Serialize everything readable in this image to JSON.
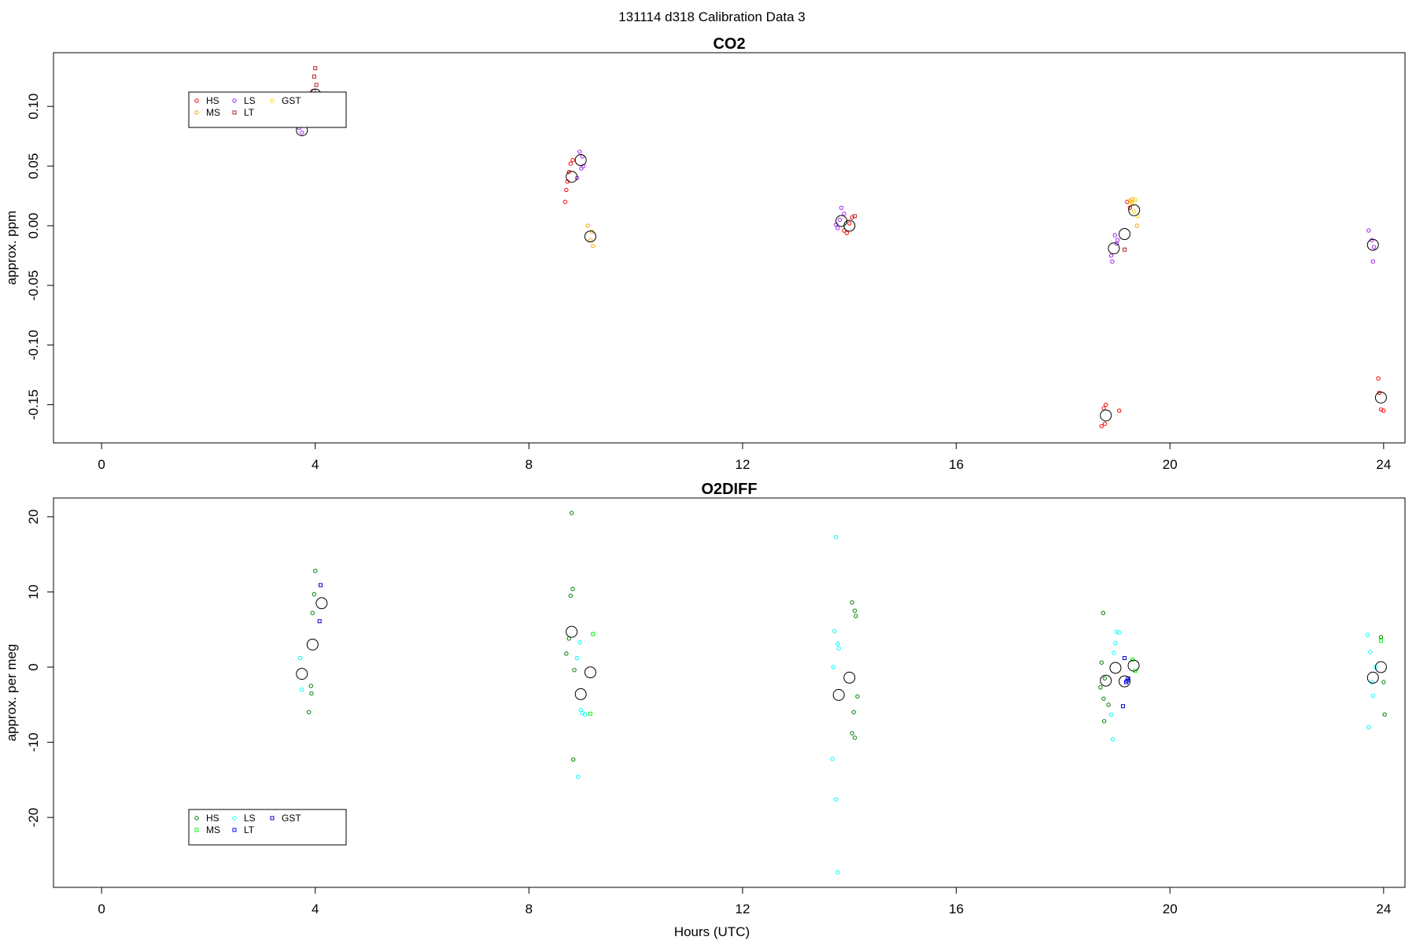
{
  "figure_title": "131114   d318   Calibration Data 3",
  "xlabel": "Hours (UTC)",
  "chart_data": [
    {
      "type": "scatter",
      "title": "CO2",
      "ylabel": "approx. ppm",
      "xlabel": "",
      "xlim": [
        -0.9,
        24.4
      ],
      "ylim": [
        -0.182,
        0.145
      ],
      "xticks": [
        "0",
        "4",
        "8",
        "12",
        "16",
        "20",
        "24"
      ],
      "xtick_values": [
        0,
        4,
        8,
        12,
        16,
        20,
        24
      ],
      "yticks": [
        "-0.15",
        "-0.10",
        "-0.05",
        "0.00",
        "0.05",
        "0.10"
      ],
      "ytick_values": [
        -0.15,
        -0.1,
        -0.05,
        0.0,
        0.05,
        0.1
      ],
      "legend": {
        "placement": "top-left",
        "items": [
          "HS",
          "LS",
          "GST",
          "MS",
          "LT"
        ]
      },
      "series": [
        {
          "name": "HS",
          "color": "#ff0000",
          "marker": "circle",
          "points": [
            [
              8.75,
              0.045
            ],
            [
              8.78,
              0.052
            ],
            [
              8.82,
              0.055
            ],
            [
              8.72,
              0.037
            ],
            [
              8.7,
              0.03
            ],
            [
              8.68,
              0.02
            ],
            [
              13.9,
              -0.004
            ],
            [
              14.05,
              0.007
            ],
            [
              13.95,
              -0.006
            ],
            [
              14.0,
              0.002
            ],
            [
              18.72,
              -0.168
            ],
            [
              18.8,
              -0.15
            ],
            [
              18.76,
              -0.153
            ],
            [
              18.78,
              -0.166
            ],
            [
              19.05,
              -0.155
            ],
            [
              23.9,
              -0.128
            ],
            [
              23.95,
              -0.154
            ],
            [
              23.92,
              -0.14
            ],
            [
              24.0,
              -0.155
            ],
            [
              19.2,
              0.02
            ],
            [
              19.25,
              0.015
            ]
          ]
        },
        {
          "name": "LS",
          "color": "#a020f0",
          "marker": "circle",
          "points": [
            [
              3.7,
              0.082
            ],
            [
              3.75,
              0.078
            ],
            [
              3.8,
              0.085
            ],
            [
              8.95,
              0.062
            ],
            [
              9.0,
              0.058
            ],
            [
              9.02,
              0.05
            ],
            [
              8.98,
              0.048
            ],
            [
              8.9,
              0.04
            ],
            [
              13.82,
              0.005
            ],
            [
              13.85,
              0.015
            ],
            [
              13.78,
              -0.002
            ],
            [
              13.9,
              0.01
            ],
            [
              13.75,
              0.001
            ],
            [
              18.92,
              -0.03
            ],
            [
              18.97,
              -0.008
            ],
            [
              19.0,
              -0.015
            ],
            [
              18.9,
              -0.025
            ],
            [
              19.02,
              -0.012
            ],
            [
              23.72,
              -0.004
            ],
            [
              23.78,
              -0.012
            ],
            [
              23.8,
              -0.03
            ],
            [
              23.82,
              -0.018
            ]
          ]
        },
        {
          "name": "GST",
          "color": "#ffd700",
          "marker": "circle",
          "points": [
            [
              19.35,
              0.022
            ],
            [
              19.3,
              0.018
            ],
            [
              19.4,
              0.008
            ],
            [
              19.33,
              0.012
            ],
            [
              19.28,
              0.02
            ]
          ]
        },
        {
          "name": "MS",
          "color": "#ffa500",
          "marker": "circle",
          "points": [
            [
              9.1,
              0.0
            ],
            [
              9.15,
              -0.012
            ],
            [
              9.2,
              -0.017
            ],
            [
              9.18,
              -0.005
            ],
            [
              19.38,
              0.0
            ],
            [
              19.3,
              0.022
            ],
            [
              19.25,
              0.021
            ]
          ]
        },
        {
          "name": "LT",
          "color": "#b22222",
          "marker": "square",
          "points": [
            [
              4.0,
              0.132
            ],
            [
              3.98,
              0.125
            ],
            [
              4.02,
              0.118
            ],
            [
              3.97,
              0.113
            ],
            [
              14.1,
              0.008
            ],
            [
              19.15,
              -0.02
            ]
          ]
        },
        {
          "name": "mean",
          "color": "#000000",
          "marker": "open-circle-large",
          "points": [
            [
              4.0,
              0.11
            ],
            [
              3.75,
              0.08
            ],
            [
              8.8,
              0.041
            ],
            [
              8.97,
              0.055
            ],
            [
              9.15,
              -0.009
            ],
            [
              13.85,
              0.004
            ],
            [
              14.0,
              0.0
            ],
            [
              18.8,
              -0.159
            ],
            [
              18.95,
              -0.019
            ],
            [
              19.15,
              -0.007
            ],
            [
              19.33,
              0.013
            ],
            [
              23.8,
              -0.016
            ],
            [
              23.95,
              -0.144
            ]
          ]
        }
      ]
    },
    {
      "type": "scatter",
      "title": "O2DIFF",
      "ylabel": "approx. per meg",
      "xlabel": "Hours (UTC)",
      "xlim": [
        -0.9,
        24.4
      ],
      "ylim": [
        -29.3,
        22.5
      ],
      "xticks": [
        "0",
        "4",
        "8",
        "12",
        "16",
        "20",
        "24"
      ],
      "xtick_values": [
        0,
        4,
        8,
        12,
        16,
        20,
        24
      ],
      "yticks": [
        "-20",
        "-10",
        "0",
        "10",
        "20"
      ],
      "ytick_values": [
        -20,
        -10,
        0,
        10,
        20
      ],
      "legend": {
        "placement": "bottom-left",
        "items": [
          "HS",
          "LS",
          "GST",
          "MS",
          "LT"
        ]
      },
      "series": [
        {
          "name": "HS",
          "color": "#008000",
          "marker": "circle",
          "points": [
            [
              4.0,
              12.8
            ],
            [
              3.98,
              9.7
            ],
            [
              3.95,
              7.2
            ],
            [
              3.92,
              -2.5
            ],
            [
              3.93,
              -3.5
            ],
            [
              3.88,
              -6.0
            ],
            [
              8.8,
              20.5
            ],
            [
              8.82,
              10.4
            ],
            [
              8.78,
              9.5
            ],
            [
              8.75,
              3.8
            ],
            [
              8.7,
              1.8
            ],
            [
              8.85,
              -0.4
            ],
            [
              8.83,
              -12.3
            ],
            [
              14.05,
              8.6
            ],
            [
              14.1,
              7.5
            ],
            [
              14.12,
              6.8
            ],
            [
              14.15,
              -3.9
            ],
            [
              14.08,
              -6.0
            ],
            [
              14.05,
              -8.8
            ],
            [
              14.1,
              -9.4
            ],
            [
              18.75,
              7.2
            ],
            [
              18.72,
              0.6
            ],
            [
              18.78,
              -1.5
            ],
            [
              18.7,
              -2.7
            ],
            [
              18.76,
              -4.2
            ],
            [
              18.85,
              -5.0
            ],
            [
              18.77,
              -7.2
            ],
            [
              23.95,
              4.0
            ],
            [
              24.0,
              -2.0
            ],
            [
              24.02,
              -6.3
            ]
          ]
        },
        {
          "name": "LS",
          "color": "#00ffff",
          "marker": "circle",
          "points": [
            [
              3.72,
              1.2
            ],
            [
              3.75,
              -3.0
            ],
            [
              8.9,
              1.2
            ],
            [
              8.95,
              3.3
            ],
            [
              8.97,
              -5.7
            ],
            [
              9.0,
              -6.1
            ],
            [
              9.05,
              -6.3
            ],
            [
              8.92,
              -14.6
            ],
            [
              13.75,
              17.3
            ],
            [
              13.72,
              4.8
            ],
            [
              13.78,
              3.1
            ],
            [
              13.8,
              2.5
            ],
            [
              13.7,
              0.0
            ],
            [
              13.68,
              -12.2
            ],
            [
              13.75,
              -17.6
            ],
            [
              13.78,
              -27.3
            ],
            [
              18.95,
              1.9
            ],
            [
              19.0,
              4.7
            ],
            [
              19.05,
              4.6
            ],
            [
              18.98,
              3.2
            ],
            [
              18.9,
              -6.3
            ],
            [
              18.93,
              -9.6
            ],
            [
              23.7,
              4.3
            ],
            [
              23.75,
              2.0
            ],
            [
              23.78,
              -2.0
            ],
            [
              23.8,
              -3.8
            ],
            [
              23.72,
              -8.0
            ],
            [
              23.85,
              0.0
            ]
          ]
        },
        {
          "name": "GST",
          "color": "#0000cd",
          "marker": "square",
          "points": [
            [
              4.1,
              10.9
            ],
            [
              4.08,
              6.1
            ],
            [
              19.15,
              1.2
            ],
            [
              19.2,
              -1.8
            ],
            [
              19.12,
              -5.2
            ]
          ]
        },
        {
          "name": "MS",
          "color": "#00ff00",
          "marker": "square",
          "points": [
            [
              9.2,
              4.4
            ],
            [
              9.15,
              -6.2
            ],
            [
              19.3,
              1.0
            ],
            [
              19.35,
              -0.5
            ],
            [
              23.95,
              3.5
            ]
          ]
        },
        {
          "name": "LT",
          "color": "#0000ff",
          "marker": "square",
          "points": [
            [
              19.18,
              -2.0
            ],
            [
              19.22,
              -1.5
            ]
          ]
        },
        {
          "name": "mean",
          "color": "#000000",
          "marker": "open-circle-large",
          "points": [
            [
              3.75,
              -0.9
            ],
            [
              3.95,
              3.0
            ],
            [
              4.12,
              8.5
            ],
            [
              8.8,
              4.7
            ],
            [
              8.97,
              -3.6
            ],
            [
              9.15,
              -0.7
            ],
            [
              13.8,
              -3.7
            ],
            [
              14.0,
              -1.4
            ],
            [
              18.8,
              -1.8
            ],
            [
              18.98,
              -0.1
            ],
            [
              19.15,
              -1.9
            ],
            [
              19.32,
              0.2
            ],
            [
              23.8,
              -1.4
            ],
            [
              23.95,
              0.0
            ]
          ]
        }
      ]
    }
  ]
}
